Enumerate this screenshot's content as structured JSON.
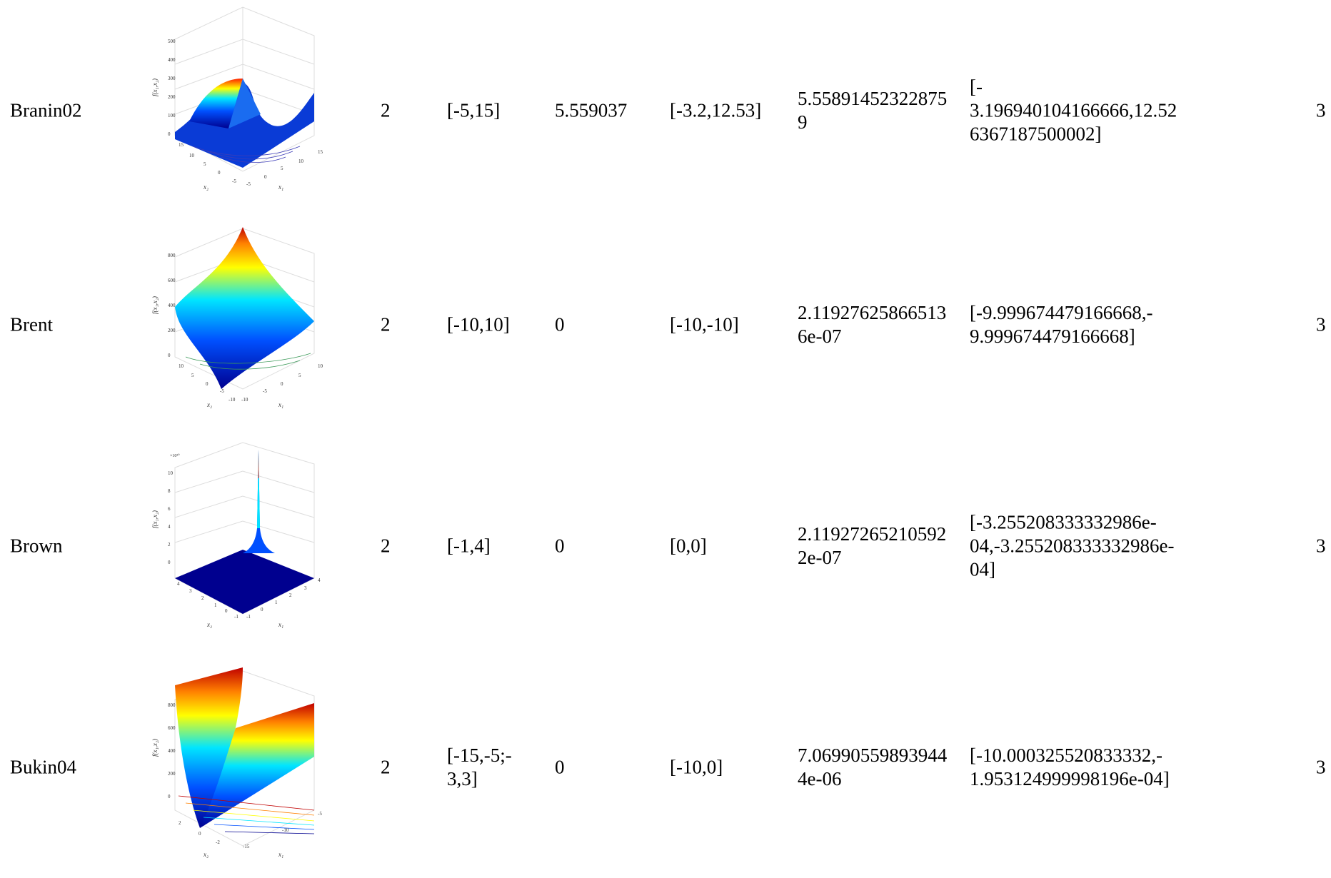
{
  "rows": [
    {
      "name": "Branin02",
      "dim": "2",
      "range": "[-5,15]",
      "f_opt": "5.559037",
      "x_opt": "[-3.2,12.53]",
      "f_res": [
        "5.55891452322875",
        "9"
      ],
      "x_res": [
        "[-",
        "3.196940104166666,12.52",
        "6367187500002]"
      ],
      "evals": "3",
      "plot": {
        "zlabel": "f(x₁,x₂)",
        "x1label": "x₁",
        "x2label": "x₂",
        "zticks": [
          "500",
          "400",
          "300",
          "200",
          "100",
          "0"
        ],
        "x1ticks": [
          "15",
          "10",
          "5",
          "0",
          "-5"
        ],
        "x2ticks": [
          "15",
          "10",
          "5",
          "0",
          "-5"
        ]
      }
    },
    {
      "name": "Brent",
      "dim": "2",
      "range": "[-10,10]",
      "f_opt": "0",
      "x_opt": "[-10,-10]",
      "f_res": [
        "2.11927625866513",
        "6e-07"
      ],
      "x_res": [
        "[-9.999674479166668,-",
        "9.999674479166668]"
      ],
      "evals": "3",
      "plot": {
        "zlabel": "f(x₁,x₂)",
        "x1label": "x₁",
        "x2label": "x₂",
        "zticks": [
          "800",
          "600",
          "400",
          "200",
          "0"
        ],
        "x1ticks": [
          "10",
          "5",
          "0",
          "-5",
          "-10"
        ],
        "x2ticks": [
          "10",
          "5",
          "0",
          "-5",
          "-10"
        ]
      }
    },
    {
      "name": "Brown",
      "dim": "2",
      "range": "[-1,4]",
      "f_opt": "0",
      "x_opt": "[0,0]",
      "f_res": [
        "2.11927265210592",
        "2e-07"
      ],
      "x_res": [
        "[-3.255208333332986e-",
        "04,-3.255208333332986e-",
        "04]"
      ],
      "evals": "3",
      "plot": {
        "zlabel": "f(x₁,x₂)",
        "x1label": "x₁",
        "x2label": "x₂",
        "zexp": "×10²⁰",
        "zticks": [
          "10",
          "8",
          "6",
          "4",
          "2",
          "0"
        ],
        "x1ticks": [
          "4",
          "3",
          "2",
          "1",
          "0",
          "-1"
        ],
        "x2ticks": [
          "4",
          "3",
          "2",
          "1",
          "0",
          "-1"
        ]
      }
    },
    {
      "name": "Bukin04",
      "dim": "2",
      "range": [
        "[-15,-5;-",
        "3,3]"
      ],
      "f_opt": "0",
      "x_opt": "[-10,0]",
      "f_res": [
        "7.06990559893944",
        "4e-06"
      ],
      "x_res": [
        "[-10.000325520833332,-",
        "1.953124999998196e-04]"
      ],
      "evals": "3",
      "plot": {
        "zlabel": "f(x₁,x₂)",
        "x1label": "x₁",
        "x2label": "x₂",
        "zticks": [
          "800",
          "600",
          "400",
          "200",
          "0"
        ],
        "x1ticks": [
          "-5",
          "-10",
          "-15"
        ],
        "x2ticks": [
          "2",
          "0",
          "-2"
        ]
      }
    }
  ],
  "colors": {
    "jet_dark_blue": "#00008f",
    "jet_blue": "#0050ff",
    "jet_cyan": "#00e5ff",
    "jet_yellow": "#ffff00",
    "jet_orange": "#ff8000",
    "jet_red": "#c00000"
  }
}
